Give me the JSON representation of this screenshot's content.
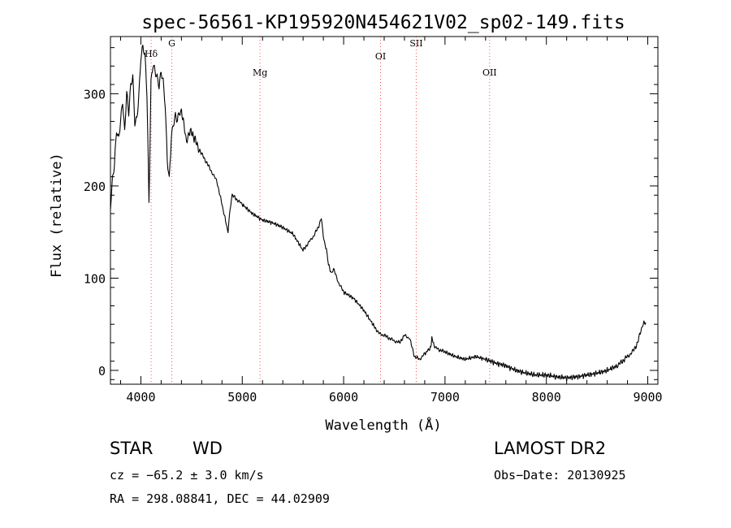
{
  "chart_data": {
    "type": "line",
    "title": "spec-56561-KP195920N454621V02_sp02-149.fits",
    "xlabel": "Wavelength (Å)",
    "ylabel": "Flux (relative)",
    "xlim": [
      3700,
      9100
    ],
    "ylim": [
      -15,
      362
    ],
    "xticks": [
      4000,
      5000,
      6000,
      7000,
      8000,
      9000
    ],
    "yticks": [
      0,
      100,
      200,
      300
    ],
    "grid": false,
    "line_color": "#000000",
    "marker_color": "#ff4d4d",
    "series": [
      {
        "x": [
          3700,
          3720,
          3740,
          3760,
          3780,
          3800,
          3820,
          3840,
          3860,
          3880,
          3900,
          3920,
          3940,
          3960,
          3980,
          4000,
          4020,
          4040,
          4060,
          4080,
          4100,
          4120,
          4140,
          4160,
          4180,
          4200,
          4220,
          4240,
          4260,
          4280,
          4300,
          4320,
          4340,
          4360,
          4380,
          4400,
          4450,
          4500,
          4550,
          4600,
          4650,
          4700,
          4750,
          4800,
          4830,
          4860,
          4880,
          4900,
          4950,
          5000,
          5100,
          5200,
          5300,
          5400,
          5500,
          5600,
          5650,
          5700,
          5750,
          5780,
          5800,
          5830,
          5850,
          5880,
          5900,
          5950,
          6000,
          6100,
          6200,
          6300,
          6350,
          6400,
          6450,
          6500,
          6550,
          6600,
          6650,
          6700,
          6750,
          6800,
          6860,
          6870,
          6900,
          6950,
          7000,
          7100,
          7200,
          7300,
          7400,
          7500,
          7600,
          7700,
          7800,
          7900,
          8000,
          8100,
          8200,
          8300,
          8400,
          8500,
          8600,
          8700,
          8750,
          8800,
          8850,
          8900,
          8950,
          8980
        ],
        "y": [
          180,
          210,
          225,
          260,
          250,
          270,
          290,
          255,
          300,
          280,
          310,
          320,
          270,
          275,
          300,
          340,
          350,
          340,
          300,
          180,
          310,
          330,
          325,
          320,
          310,
          325,
          315,
          290,
          230,
          205,
          250,
          265,
          275,
          270,
          278,
          280,
          250,
          260,
          245,
          235,
          225,
          215,
          205,
          180,
          165,
          150,
          175,
          190,
          185,
          180,
          170,
          163,
          160,
          155,
          148,
          130,
          138,
          145,
          155,
          165,
          145,
          130,
          115,
          105,
          110,
          95,
          85,
          78,
          65,
          48,
          40,
          38,
          35,
          32,
          30,
          38,
          35,
          15,
          12,
          18,
          25,
          35,
          25,
          22,
          20,
          15,
          12,
          15,
          12,
          8,
          5,
          0,
          -3,
          -5,
          -5,
          -7,
          -8,
          -7,
          -5,
          -3,
          0,
          5,
          10,
          15,
          20,
          30,
          50,
          52
        ]
      }
    ],
    "lines": [
      {
        "label": "Hδ",
        "x": 4101
      },
      {
        "label": "G",
        "x": 4305
      },
      {
        "label": "Mg",
        "x": 5175
      },
      {
        "label": "OI",
        "x": 6364
      },
      {
        "label": "SII",
        "x": 6716
      },
      {
        "label": "OII",
        "x": 7440
      }
    ]
  },
  "info": {
    "class": "STAR",
    "subclass": "WD",
    "survey": "LAMOST DR2",
    "cz": "cz = −65.2 ± 3.0 km/s",
    "obs_date": "Obs−Date: 20130925",
    "coords": "RA = 298.08841, DEC =  44.02909"
  }
}
